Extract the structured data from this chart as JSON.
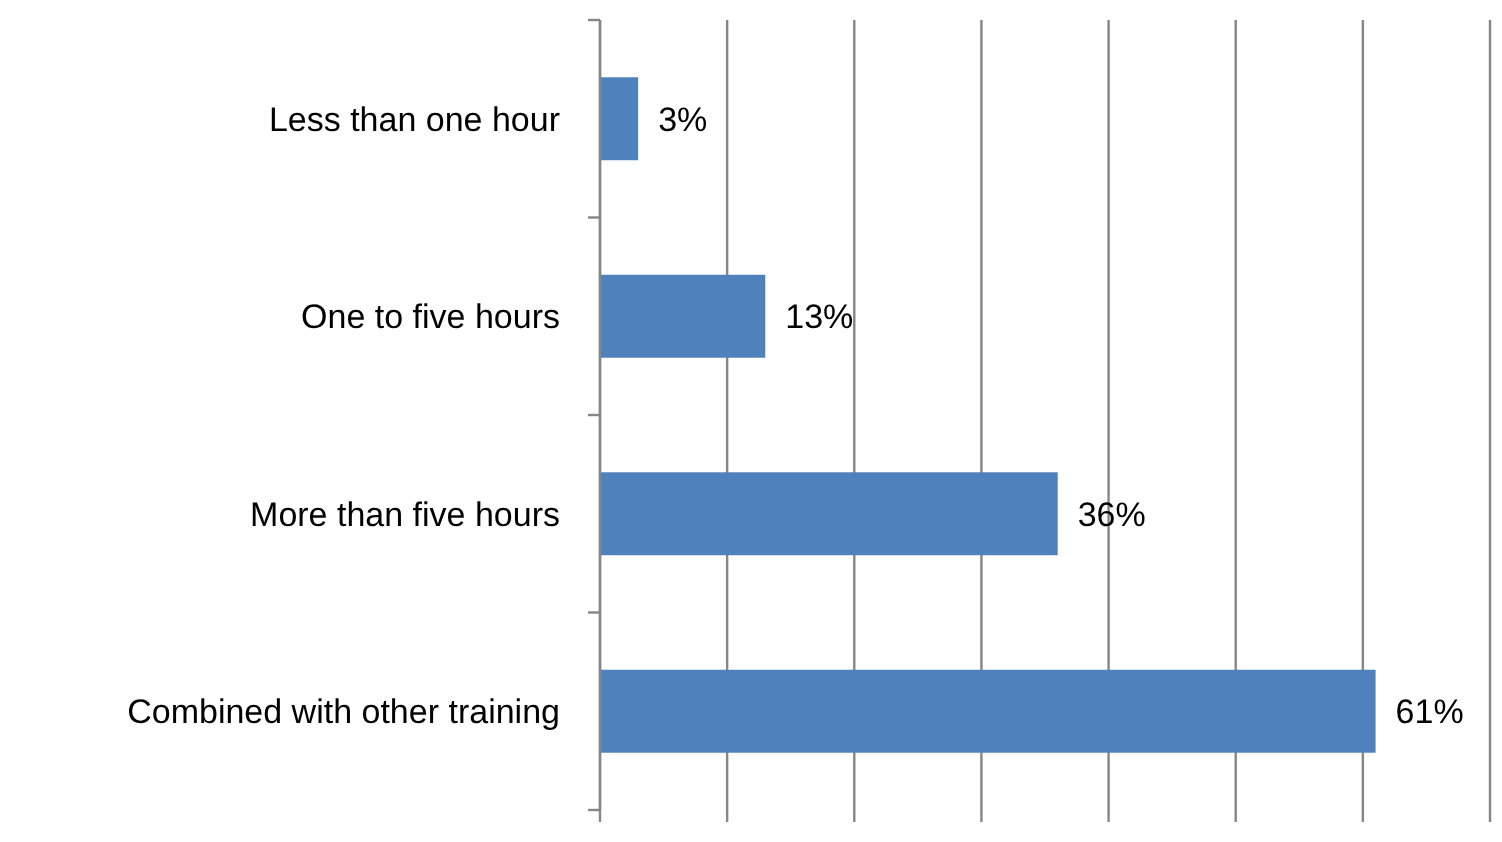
{
  "chart_data": {
    "type": "bar",
    "orientation": "horizontal",
    "categories": [
      "Less than one hour",
      "One to five hours",
      "More than five hours",
      "Combined with other training"
    ],
    "values": [
      3,
      13,
      36,
      61
    ],
    "color": "#4f81bd",
    "data_labels": true,
    "value_labels": [
      "3%",
      "13%",
      "36%",
      "61%"
    ],
    "xlim": [
      0,
      70
    ],
    "xticks": [
      {
        "value": 0,
        "label": null
      },
      {
        "value": 10,
        "label": null
      },
      {
        "value": 20,
        "label": null
      },
      {
        "value": 30,
        "label": null
      },
      {
        "value": 40,
        "label": null
      },
      {
        "value": 50,
        "label": null
      },
      {
        "value": 60,
        "label": null
      },
      {
        "value": 70,
        "label": null
      }
    ],
    "grid": "x",
    "tick_labels": "y"
  }
}
